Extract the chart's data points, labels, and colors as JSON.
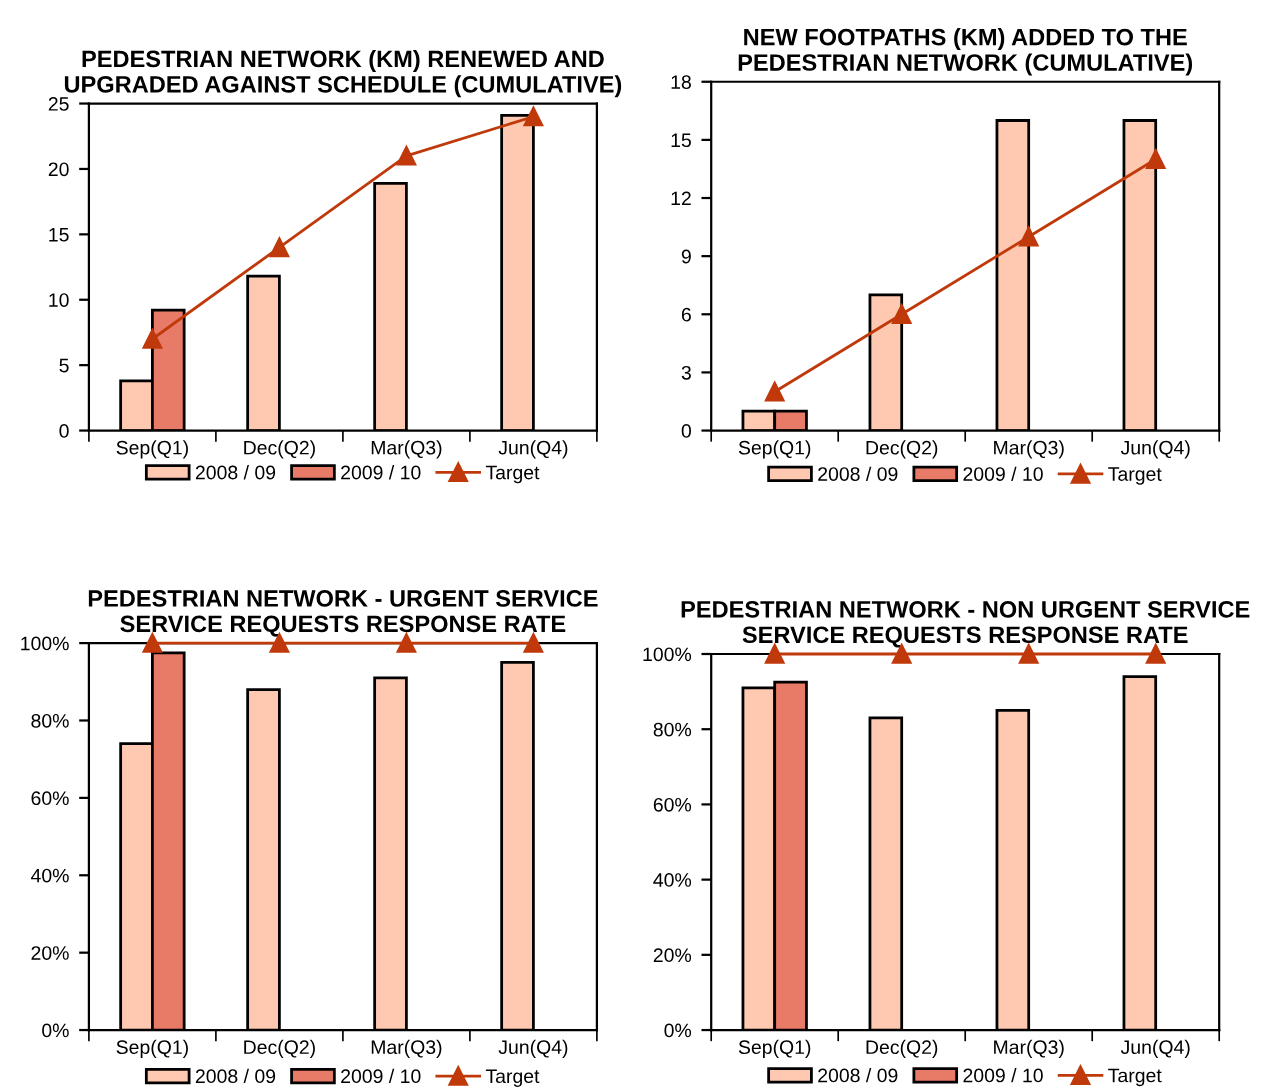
{
  "chart_data": [
    {
      "type": "bar",
      "title": "PEDESTRIAN NETWORK (KM) RENEWED AND UPGRADED AGAINST SCHEDULE (CUMULATIVE)",
      "categories": [
        "Sep(Q1)",
        "Dec(Q2)",
        "Mar(Q3)",
        "Jun(Q4)"
      ],
      "series": [
        {
          "name": "2008 / 09",
          "color": "#ffc8b0",
          "values": [
            3.8,
            11.8,
            18.9,
            24.1
          ]
        },
        {
          "name": "2009 / 10",
          "color": "#e87a68",
          "values": [
            9.2,
            null,
            null,
            null
          ]
        },
        {
          "name": "Target",
          "type": "line",
          "color": "#c0390b",
          "marker": "triangle",
          "values": [
            7,
            14,
            21,
            24
          ]
        }
      ],
      "ylim": [
        0,
        25
      ],
      "yticks": [
        0,
        5,
        10,
        15,
        20,
        25
      ],
      "legend": "bottom",
      "grid": false
    },
    {
      "type": "bar",
      "title": "NEW FOOTPATHS (KM) ADDED TO THE PEDESTRIAN NETWORK (CUMULATIVE)",
      "categories": [
        "Sep(Q1)",
        "Dec(Q2)",
        "Mar(Q3)",
        "Jun(Q4)"
      ],
      "series": [
        {
          "name": "2008 / 09",
          "color": "#ffc8b0",
          "values": [
            1,
            7,
            16,
            16
          ]
        },
        {
          "name": "2009 / 10",
          "color": "#e87a68",
          "values": [
            1,
            null,
            null,
            null
          ]
        },
        {
          "name": "Target",
          "type": "line",
          "color": "#c0390b",
          "marker": "triangle",
          "values": [
            2,
            6,
            10,
            14
          ]
        }
      ],
      "ylim": [
        0,
        18
      ],
      "yticks": [
        0,
        3,
        6,
        9,
        12,
        15,
        18
      ],
      "legend": "bottom",
      "grid": false
    },
    {
      "type": "bar",
      "title": "PEDESTRIAN NETWORK - URGENT SERVICE SERVICE REQUESTS RESPONSE RATE",
      "categories": [
        "Sep(Q1)",
        "Dec(Q2)",
        "Mar(Q3)",
        "Jun(Q4)"
      ],
      "series": [
        {
          "name": "2008 / 09",
          "color": "#ffc8b0",
          "values": [
            74,
            88,
            91,
            95
          ]
        },
        {
          "name": "2009 / 10",
          "color": "#e87a68",
          "values": [
            97.5,
            null,
            null,
            null
          ]
        },
        {
          "name": "Target",
          "type": "line",
          "color": "#c0390b",
          "marker": "triangle",
          "values": [
            100,
            100,
            100,
            100
          ]
        }
      ],
      "ylim": [
        0,
        100
      ],
      "yticks": [
        {
          "value": 0,
          "label": "0%"
        },
        {
          "value": 20,
          "label": "20%"
        },
        {
          "value": 40,
          "label": "40%"
        },
        {
          "value": 60,
          "label": "60%"
        },
        {
          "value": 80,
          "label": "80%"
        },
        {
          "value": 100,
          "label": "100%"
        }
      ],
      "legend": "bottom",
      "grid": false
    },
    {
      "type": "bar",
      "title": "PEDESTRIAN NETWORK - NON URGENT SERVICE SERVICE REQUESTS RESPONSE RATE",
      "categories": [
        "Sep(Q1)",
        "Dec(Q2)",
        "Mar(Q3)",
        "Jun(Q4)"
      ],
      "series": [
        {
          "name": "2008 / 09",
          "color": "#ffc8b0",
          "values": [
            91,
            83,
            85,
            94
          ]
        },
        {
          "name": "2009 / 10",
          "color": "#e87a68",
          "values": [
            92.5,
            null,
            null,
            null
          ]
        },
        {
          "name": "Target",
          "type": "line",
          "color": "#c0390b",
          "marker": "triangle",
          "values": [
            100,
            100,
            100,
            100
          ]
        }
      ],
      "ylim": [
        0,
        100
      ],
      "yticks": [
        {
          "value": 0,
          "label": "0%"
        },
        {
          "value": 20,
          "label": "20%"
        },
        {
          "value": 40,
          "label": "40%"
        },
        {
          "value": 60,
          "label": "60%"
        },
        {
          "value": 80,
          "label": "80%"
        },
        {
          "value": 100,
          "label": "100%"
        }
      ],
      "legend": "bottom",
      "grid": false
    }
  ]
}
